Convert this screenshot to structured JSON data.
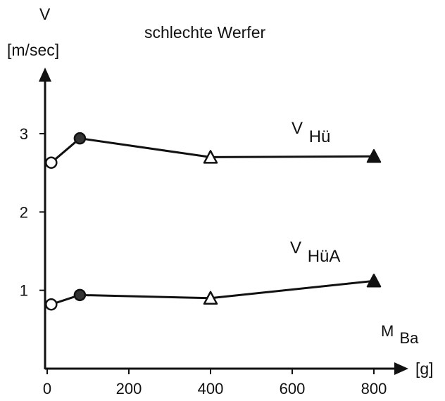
{
  "chart_data": {
    "type": "line",
    "title": "schlechte Werfer",
    "ylabel": "V",
    "ylabel_unit": "[m/sec]",
    "xlabel_main": "M",
    "xlabel_sub": "Ba",
    "xlabel_unit": "[g]",
    "xlim": [
      0,
      900
    ],
    "ylim": [
      0,
      3.8
    ],
    "xticks": [
      0,
      200,
      400,
      600,
      800
    ],
    "xtick_labels": [
      "0",
      "200",
      "400",
      "600",
      "800"
    ],
    "yticks": [
      1,
      2,
      3
    ],
    "ytick_labels": [
      "1",
      "2",
      "3"
    ],
    "grid": false,
    "series": [
      {
        "name_main": "V",
        "name_sub": "Hü",
        "x": [
          10,
          80,
          400,
          800
        ],
        "y": [
          2.63,
          2.94,
          2.7,
          2.71
        ],
        "markers": [
          "circle-open",
          "circle-filled",
          "triangle-open",
          "triangle-filled"
        ]
      },
      {
        "name_main": "V",
        "name_sub": "HüA",
        "x": [
          10,
          80,
          400,
          800
        ],
        "y": [
          0.82,
          0.94,
          0.9,
          1.12
        ],
        "markers": [
          "circle-open",
          "circle-filled",
          "triangle-open",
          "triangle-filled"
        ]
      }
    ]
  }
}
